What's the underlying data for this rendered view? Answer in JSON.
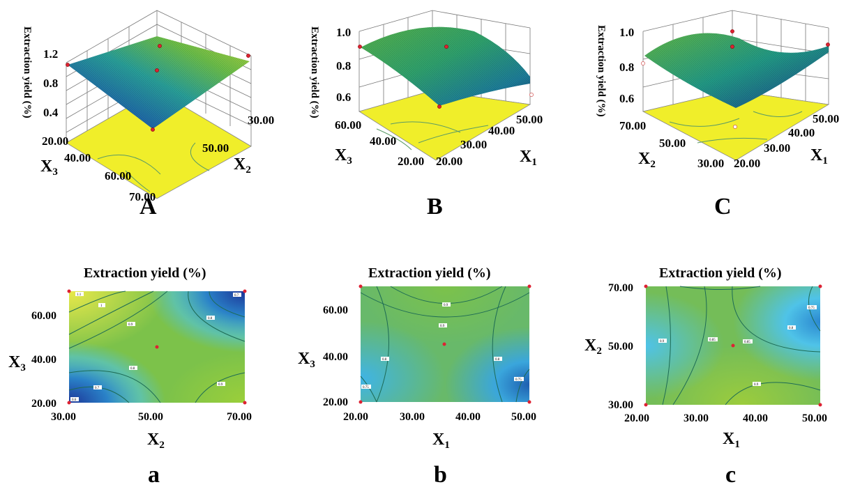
{
  "figure": {
    "panels_3d": [
      {
        "id": "A",
        "label": "A",
        "zlabel": "Extraction yield (%)",
        "z_ticks": [
          "1.2",
          "0.8",
          "0.4"
        ],
        "left_axis": {
          "name": "X",
          "sub": "3",
          "ticks": [
            "20.00",
            "40.00",
            "60.00",
            "70.00"
          ]
        },
        "right_axis": {
          "name": "X",
          "sub": "2",
          "ticks": [
            "30.00",
            "50.00"
          ]
        }
      },
      {
        "id": "B",
        "label": "B",
        "zlabel": "Extraction yield (%)",
        "z_ticks": [
          "1.0",
          "0.8",
          "0.6"
        ],
        "left_axis": {
          "name": "X",
          "sub": "3",
          "ticks": [
            "60.00",
            "40.00",
            "20.00"
          ]
        },
        "right_axis": {
          "name": "X",
          "sub": "1",
          "ticks": [
            "20.00",
            "30.00",
            "40.00",
            "50.00"
          ]
        }
      },
      {
        "id": "C",
        "label": "C",
        "zlabel": "Extraction yield (%)",
        "z_ticks": [
          "1.0",
          "0.8",
          "0.6"
        ],
        "left_axis": {
          "name": "X",
          "sub": "2",
          "ticks": [
            "70.00",
            "50.00",
            "30.00"
          ]
        },
        "right_axis": {
          "name": "X",
          "sub": "1",
          "ticks": [
            "20.00",
            "30.00",
            "40.00",
            "50.00"
          ]
        }
      }
    ],
    "panels_contour": [
      {
        "id": "a",
        "label": "a",
        "title": "Extraction yield (%)",
        "x_axis": {
          "name": "X",
          "sub": "2",
          "ticks": [
            "30.00",
            "50.00",
            "70.00"
          ]
        },
        "y_axis": {
          "name": "X",
          "sub": "3",
          "ticks": [
            "60.00",
            "40.00",
            "20.00"
          ]
        }
      },
      {
        "id": "b",
        "label": "b",
        "title": "Extraction yield (%)",
        "x_axis": {
          "name": "X",
          "sub": "1",
          "ticks": [
            "20.00",
            "30.00",
            "40.00",
            "50.00"
          ]
        },
        "y_axis": {
          "name": "X",
          "sub": "3",
          "ticks": [
            "60.00",
            "40.00",
            "20.00"
          ]
        }
      },
      {
        "id": "c",
        "label": "c",
        "title": "Extraction yield (%)",
        "x_axis": {
          "name": "X",
          "sub": "1",
          "ticks": [
            "20.00",
            "30.00",
            "40.00",
            "50.00"
          ]
        },
        "y_axis": {
          "name": "X",
          "sub": "2",
          "ticks": [
            "70.00",
            "50.00",
            "30.00"
          ]
        }
      }
    ]
  },
  "chart_data": [
    {
      "type": "surface",
      "panel": "A",
      "x": {
        "factor": "X2",
        "range": [
          30,
          70
        ]
      },
      "y": {
        "factor": "X3",
        "range": [
          20,
          70
        ]
      },
      "z_range": [
        0.4,
        1.2
      ],
      "zlabel": "Extraction yield (%)"
    },
    {
      "type": "surface",
      "panel": "B",
      "x": {
        "factor": "X1",
        "range": [
          20,
          50
        ]
      },
      "y": {
        "factor": "X3",
        "range": [
          20,
          70
        ]
      },
      "z_range": [
        0.6,
        1.0
      ],
      "zlabel": "Extraction yield (%)"
    },
    {
      "type": "surface",
      "panel": "C",
      "x": {
        "factor": "X1",
        "range": [
          20,
          50
        ]
      },
      "y": {
        "factor": "X2",
        "range": [
          30,
          70
        ]
      },
      "z_range": [
        0.6,
        1.0
      ],
      "zlabel": "Extraction yield (%)"
    },
    {
      "type": "contour",
      "panel": "a",
      "title": "Extraction yield (%)",
      "x": {
        "factor": "X2",
        "range": [
          30,
          70
        ]
      },
      "y": {
        "factor": "X3",
        "range": [
          20,
          70
        ]
      },
      "contour_levels": [
        "1.1",
        "1",
        "0.9",
        "0.8",
        "0.8",
        "0.7",
        "0.7",
        "0.9",
        "0.6"
      ],
      "center_point": [
        47,
        45
      ]
    },
    {
      "type": "contour",
      "panel": "b",
      "title": "Extraction yield (%)",
      "x": {
        "factor": "X1",
        "range": [
          20,
          50
        ]
      },
      "y": {
        "factor": "X3",
        "range": [
          20,
          70
        ]
      },
      "contour_levels": [
        "0.9",
        "0.9",
        "0.8",
        "0.8",
        "0.75",
        "0.75"
      ],
      "center_point": [
        35,
        45
      ]
    },
    {
      "type": "contour",
      "panel": "c",
      "title": "Extraction yield (%)",
      "x": {
        "factor": "X1",
        "range": [
          20,
          50
        ]
      },
      "y": {
        "factor": "X2",
        "range": [
          30,
          70
        ]
      },
      "contour_levels": [
        "0.9",
        "0.85",
        "0.85",
        "0.8",
        "0.75",
        "0.9"
      ],
      "center_point": [
        35,
        50
      ]
    }
  ]
}
